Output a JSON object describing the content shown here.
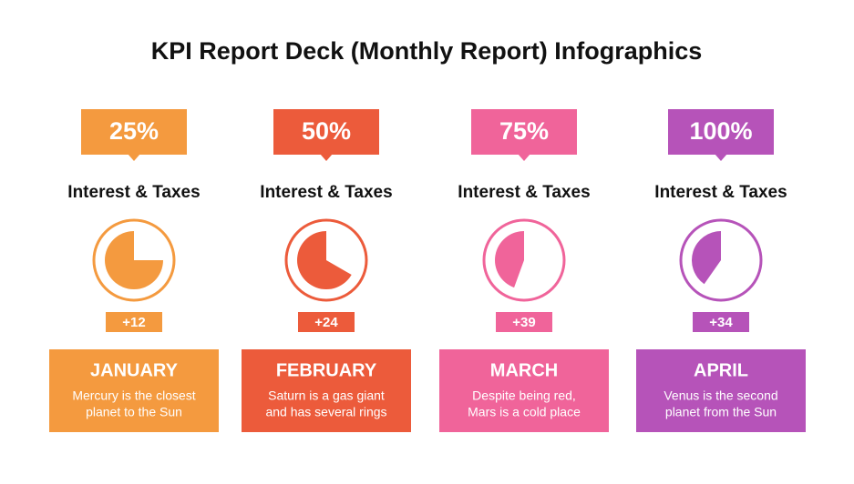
{
  "title": "KPI Report Deck (Monthly Report) Infographics",
  "columns": [
    {
      "percent": "25%",
      "label": "Interest & Taxes",
      "delta": "+12",
      "month": "JANUARY",
      "description": [
        "Mercury is the closest",
        "planet to the Sun"
      ]
    },
    {
      "percent": "50%",
      "label": "Interest & Taxes",
      "delta": "+24",
      "month": "FEBRUARY",
      "description": [
        "Saturn is a gas giant",
        "and has several rings"
      ]
    },
    {
      "percent": "75%",
      "label": "Interest & Taxes",
      "delta": "+39",
      "month": "MARCH",
      "description": [
        "Despite being red,",
        "Mars is a cold place"
      ]
    },
    {
      "percent": "100%",
      "label": "Interest & Taxes",
      "delta": "+34",
      "month": "APRIL",
      "description": [
        "Venus is the second",
        "planet from the Sun"
      ]
    }
  ]
}
